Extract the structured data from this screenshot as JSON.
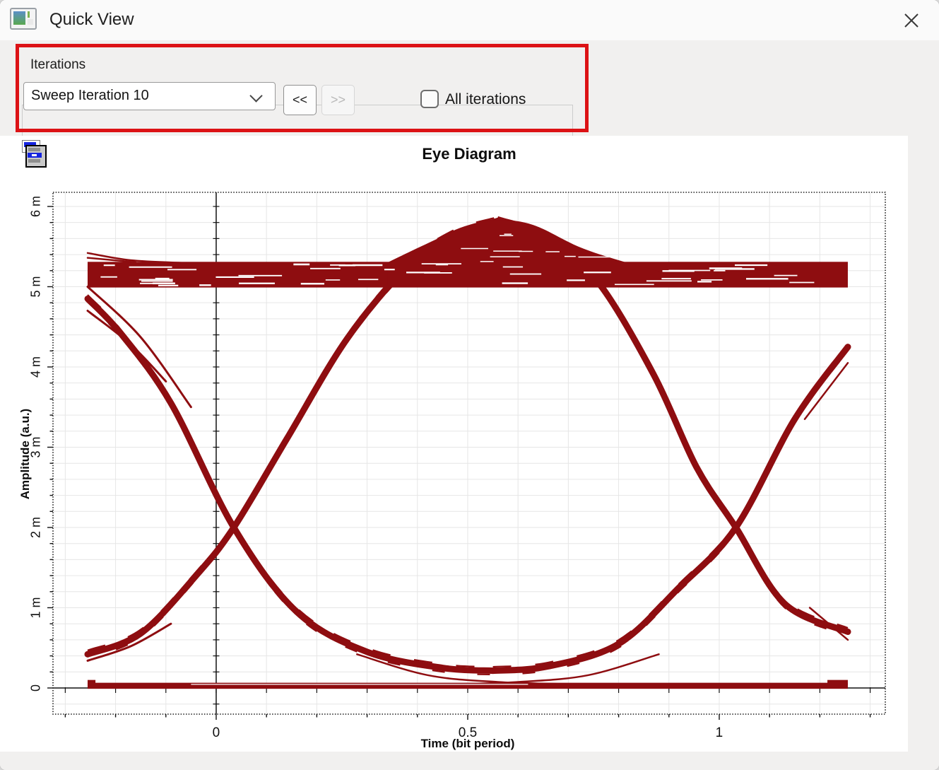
{
  "window": {
    "title": "Quick View"
  },
  "iterations": {
    "group_label": "Iterations",
    "selected": "Sweep Iteration 10",
    "prev_label": "<<",
    "next_label": ">>",
    "all_iterations_label": "All iterations",
    "all_iterations_checked": false,
    "highlight_color": "#dc1215"
  },
  "chart_data": {
    "type": "line",
    "title": "Eye Diagram",
    "xlabel": "Time (bit period)",
    "ylabel": "Amplitude (a.u.)",
    "trace_color": "#8e0d10",
    "grid": true,
    "grid_color": "#e6e6e6",
    "axis_color": "#111111",
    "x_unit": "bit period",
    "y_unit": "m (1e-3 a.u.)",
    "xlim": [
      -0.3244,
      1.3301
    ],
    "ylim": [
      -0.326,
      6.176
    ],
    "x_minor_step": 0.1,
    "y_minor_step": 0.2,
    "x_ticks": [
      {
        "value": 0,
        "label": "0"
      },
      {
        "value": 0.5,
        "label": "0.5"
      },
      {
        "value": 1,
        "label": "1"
      }
    ],
    "y_ticks": [
      {
        "value": 0,
        "label": "0"
      },
      {
        "value": 1,
        "label": "1 m"
      },
      {
        "value": 2,
        "label": "2 m"
      },
      {
        "value": 3,
        "label": "3 m"
      },
      {
        "value": 4,
        "label": "4 m"
      },
      {
        "value": 5,
        "label": "5 m"
      },
      {
        "value": 6,
        "label": "6 m"
      }
    ],
    "series": [
      {
        "name": "one-level-band",
        "type": "band",
        "x": [
          -0.2556,
          1.2556
        ],
        "y": [
          4.99,
          5.31
        ]
      },
      {
        "name": "zero-level-line",
        "type": "band",
        "x": [
          -0.2556,
          1.2556
        ],
        "y": [
          -0.01,
          0.065
        ]
      },
      {
        "name": "zero-step-left",
        "type": "band",
        "x": [
          -0.2556,
          -0.24
        ],
        "y": [
          0.03,
          0.1
        ]
      },
      {
        "name": "zero-step-right",
        "type": "band",
        "x": [
          1.215,
          1.2556
        ],
        "y": [
          0.035,
          0.1
        ]
      },
      {
        "name": "falling-edge",
        "type": "curve",
        "width": 9,
        "points": [
          [
            -0.2556,
            4.85
          ],
          [
            -0.19,
            4.42
          ],
          [
            -0.09,
            3.55
          ],
          [
            0.035,
            2.0
          ],
          [
            0.16,
            0.95
          ],
          [
            0.3,
            0.45
          ],
          [
            0.45,
            0.25
          ],
          [
            0.55,
            0.215
          ]
        ]
      },
      {
        "name": "rising-edge",
        "type": "curve",
        "width": 9,
        "points": [
          [
            0.55,
            0.215
          ],
          [
            0.66,
            0.27
          ],
          [
            0.8,
            0.55
          ],
          [
            0.92,
            1.25
          ],
          [
            1.033,
            2.0
          ],
          [
            1.15,
            3.35
          ],
          [
            1.2556,
            4.25
          ]
        ]
      },
      {
        "name": "arch-rising",
        "type": "curve",
        "width": 9,
        "points": [
          [
            -0.2556,
            0.42
          ],
          [
            -0.15,
            0.68
          ],
          [
            -0.04,
            1.4
          ],
          [
            0.035,
            2.0
          ],
          [
            0.14,
            3.1
          ],
          [
            0.26,
            4.35
          ],
          [
            0.38,
            5.25
          ],
          [
            0.47,
            5.65
          ],
          [
            0.56,
            5.82
          ]
        ]
      },
      {
        "name": "arch-falling",
        "type": "curve",
        "width": 9,
        "points": [
          [
            0.56,
            5.82
          ],
          [
            0.66,
            5.6
          ],
          [
            0.76,
            5.05
          ],
          [
            0.87,
            3.9
          ],
          [
            0.955,
            2.75
          ],
          [
            1.033,
            2.0
          ],
          [
            1.13,
            1.05
          ],
          [
            1.2556,
            0.7
          ]
        ]
      },
      {
        "name": "overshoot-hump",
        "type": "fill",
        "base": 5.02,
        "points": [
          [
            0.34,
            5.3
          ],
          [
            0.42,
            5.54
          ],
          [
            0.5,
            5.76
          ],
          [
            0.56,
            5.83
          ],
          [
            0.63,
            5.77
          ],
          [
            0.72,
            5.5
          ],
          [
            0.8,
            5.33
          ],
          [
            0.87,
            5.21
          ],
          [
            0.91,
            5.13
          ]
        ]
      },
      {
        "name": "band-left-strand-1",
        "type": "curve",
        "width": 2.5,
        "points": [
          [
            -0.2556,
            5.42
          ],
          [
            -0.17,
            5.33
          ],
          [
            -0.06,
            5.295
          ]
        ]
      },
      {
        "name": "band-left-strand-2",
        "type": "curve",
        "width": 2.5,
        "points": [
          [
            -0.2556,
            5.36
          ],
          [
            -0.16,
            5.305
          ]
        ]
      },
      {
        "name": "falling-left-strand-1",
        "type": "curve",
        "width": 3,
        "points": [
          [
            -0.2556,
            5.0
          ],
          [
            -0.15,
            4.37
          ],
          [
            -0.05,
            3.5
          ]
        ]
      },
      {
        "name": "falling-left-strand-2",
        "type": "curve",
        "width": 3,
        "points": [
          [
            -0.2556,
            4.7
          ],
          [
            -0.17,
            4.28
          ],
          [
            -0.1,
            3.82
          ]
        ]
      },
      {
        "name": "arch-left-strand",
        "type": "curve",
        "width": 3,
        "points": [
          [
            -0.2556,
            0.34
          ],
          [
            -0.17,
            0.52
          ],
          [
            -0.09,
            0.8
          ]
        ]
      },
      {
        "name": "rising-tip-strand",
        "type": "curve",
        "width": 2.5,
        "points": [
          [
            1.17,
            3.35
          ],
          [
            1.2556,
            4.05
          ]
        ]
      },
      {
        "name": "arch-tip-strand",
        "type": "curve",
        "width": 2.5,
        "points": [
          [
            1.18,
            1.0
          ],
          [
            1.2556,
            0.6
          ]
        ]
      },
      {
        "name": "zero-approach-strand",
        "type": "curve",
        "width": 2.5,
        "points": [
          [
            0.28,
            0.42
          ],
          [
            0.42,
            0.16
          ],
          [
            0.56,
            0.075
          ],
          [
            0.72,
            0.045
          ]
        ]
      },
      {
        "name": "zero-depart-strand",
        "type": "curve",
        "width": 2.5,
        "points": [
          [
            0.46,
            0.045
          ],
          [
            0.6,
            0.075
          ],
          [
            0.74,
            0.16
          ],
          [
            0.88,
            0.42
          ]
        ]
      }
    ]
  }
}
